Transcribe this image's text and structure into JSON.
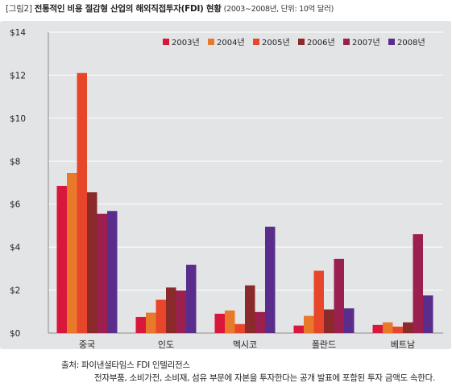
{
  "figure": {
    "label": "[그림2]",
    "title": "전통적인 비용 절감형 산업의 해외직접투자(FDI) 현황",
    "subtitle": "(2003∼2008년, 단위: 10억 달러)"
  },
  "source": {
    "line1": "출처: 파이낸셜타임스 FDI 인텔리전스",
    "line2": "전자부품, 소비가전, 소비재, 섬유 부문에 자본을 투자한다는 공개 발표에 포함된 투자 금액도 속한다."
  },
  "chart_data": {
    "type": "bar",
    "title": "전통적인 비용 절감형 산업의 해외직접투자(FDI) 현황",
    "categories": [
      "중국",
      "인도",
      "멕시코",
      "폴란드",
      "베트남"
    ],
    "ylim": [
      0,
      14
    ],
    "yticks": [
      0,
      2,
      4,
      6,
      8,
      10,
      12,
      14
    ],
    "ytick_labels": [
      "$0",
      "$2",
      "$4",
      "$6",
      "$8",
      "$10",
      "$12",
      "$14"
    ],
    "grid": true,
    "legend_position": "top-right",
    "series": [
      {
        "name": "2003년",
        "color": "#d9163c",
        "values": [
          6.85,
          0.75,
          0.9,
          0.35,
          0.38
        ]
      },
      {
        "name": "2004년",
        "color": "#e8782a",
        "values": [
          7.45,
          0.95,
          1.05,
          0.8,
          0.5
        ]
      },
      {
        "name": "2005년",
        "color": "#e8462b",
        "values": [
          12.1,
          1.55,
          0.42,
          2.9,
          0.3
        ]
      },
      {
        "name": "2006년",
        "color": "#8a2a2a",
        "values": [
          6.55,
          2.12,
          2.22,
          1.1,
          0.5
        ]
      },
      {
        "name": "2007년",
        "color": "#9b1f4f",
        "values": [
          5.55,
          1.98,
          0.98,
          3.45,
          4.6
        ]
      },
      {
        "name": "2008년",
        "color": "#5a2d8c",
        "values": [
          5.68,
          3.18,
          4.95,
          1.15,
          1.75
        ]
      }
    ]
  }
}
